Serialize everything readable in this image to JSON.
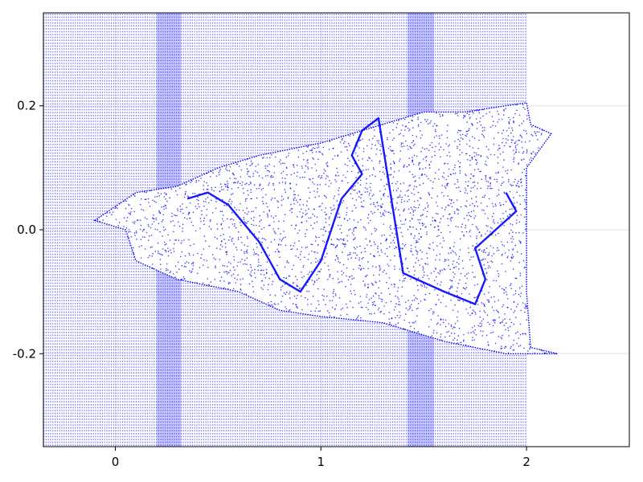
{
  "chart_data": {
    "type": "scatter",
    "title": "",
    "xlabel": "",
    "ylabel": "",
    "xlim": [
      -0.35,
      2.5
    ],
    "ylim": [
      -0.35,
      0.35
    ],
    "x_ticks": [
      0,
      1,
      2
    ],
    "x_tick_labels": [
      "0",
      "1",
      "2"
    ],
    "y_ticks": [
      -0.2,
      0.0,
      0.2
    ],
    "y_tick_labels": [
      "-0.2",
      "0.0",
      "0.2"
    ],
    "grid": true,
    "legend": "none",
    "series": [
      {
        "color": "#0000ff",
        "description_points": {
          "background_band": {
            "x_range": [
              -0.35,
              2.0
            ],
            "y_range": [
              -0.35,
              0.35
            ]
          },
          "dense_vertical_bands_x": [
            [
              0.2,
              0.32
            ],
            [
              1.42,
              1.55
            ]
          ],
          "attractor_outline": [
            [
              -0.1,
              0.015
            ],
            [
              0.1,
              0.06
            ],
            [
              0.3,
              0.07
            ],
            [
              0.5,
              0.1
            ],
            [
              0.7,
              0.12
            ],
            [
              1.0,
              0.14
            ],
            [
              1.3,
              0.17
            ],
            [
              1.5,
              0.19
            ],
            [
              1.7,
              0.19
            ],
            [
              1.9,
              0.2
            ],
            [
              2.0,
              0.205
            ],
            [
              2.02,
              0.17
            ],
            [
              2.12,
              0.155
            ],
            [
              2.0,
              0.1
            ],
            [
              2.0,
              -0.1
            ],
            [
              2.02,
              -0.19
            ],
            [
              2.15,
              -0.2
            ],
            [
              1.9,
              -0.2
            ],
            [
              1.6,
              -0.18
            ],
            [
              1.3,
              -0.15
            ],
            [
              1.0,
              -0.14
            ],
            [
              0.8,
              -0.13
            ],
            [
              0.6,
              -0.1
            ],
            [
              0.3,
              -0.08
            ],
            [
              0.1,
              -0.05
            ],
            [
              0.05,
              0.0
            ],
            [
              -0.1,
              0.015
            ]
          ],
          "dense_curve": [
            [
              0.35,
              0.05
            ],
            [
              0.45,
              0.06
            ],
            [
              0.55,
              0.04
            ],
            [
              0.7,
              -0.02
            ],
            [
              0.8,
              -0.08
            ],
            [
              0.9,
              -0.1
            ],
            [
              1.0,
              -0.05
            ],
            [
              1.1,
              0.05
            ],
            [
              1.2,
              0.09
            ],
            [
              1.15,
              0.12
            ],
            [
              1.2,
              0.16
            ],
            [
              1.28,
              0.18
            ],
            [
              1.4,
              -0.07
            ],
            [
              1.6,
              -0.1
            ],
            [
              1.75,
              -0.12
            ],
            [
              1.8,
              -0.08
            ],
            [
              1.75,
              -0.03
            ],
            [
              1.85,
              0.0
            ],
            [
              1.95,
              0.03
            ],
            [
              1.9,
              0.06
            ]
          ]
        }
      }
    ]
  }
}
